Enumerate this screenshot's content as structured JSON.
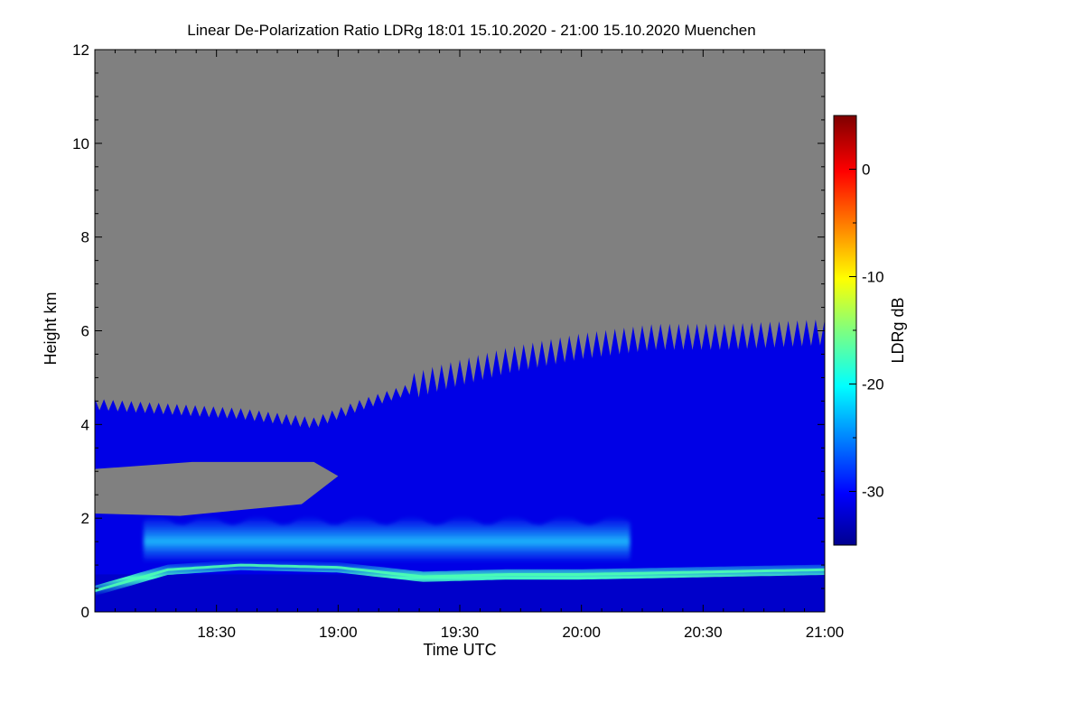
{
  "chart_data": {
    "type": "heatmap",
    "title": "Linear De-Polarization Ratio LDRg   18:01 15.10.2020 - 21:00 15.10.2020 Muenchen",
    "xlabel": "Time UTC",
    "ylabel": "Height km",
    "colorbar_label": "LDRg dB",
    "x_range_hours": [
      18.0,
      21.0
    ],
    "x_ticks": [
      {
        "label": "18:30",
        "value": 18.5
      },
      {
        "label": "19:00",
        "value": 19.0
      },
      {
        "label": "19:30",
        "value": 19.5
      },
      {
        "label": "20:00",
        "value": 20.0
      },
      {
        "label": "20:30",
        "value": 20.5
      },
      {
        "label": "21:00",
        "value": 21.0
      }
    ],
    "ylim": [
      0,
      12
    ],
    "y_ticks": [
      0,
      2,
      4,
      6,
      8,
      10,
      12
    ],
    "colorbar_range": [
      -35,
      5
    ],
    "colorbar_ticks": [
      0,
      -10,
      -20,
      -30
    ],
    "colormap": "jet",
    "background_no_signal_color": "#808080",
    "cloud_top_km": [
      {
        "time": 18.0,
        "top": 4.4
      },
      {
        "time": 18.3,
        "top": 4.3
      },
      {
        "time": 18.6,
        "top": 4.2
      },
      {
        "time": 18.9,
        "top": 4.0
      },
      {
        "time": 19.1,
        "top": 4.4
      },
      {
        "time": 19.4,
        "top": 4.9
      },
      {
        "time": 19.7,
        "top": 5.3
      },
      {
        "time": 20.0,
        "top": 5.6
      },
      {
        "time": 20.3,
        "top": 5.8
      },
      {
        "time": 20.6,
        "top": 5.8
      },
      {
        "time": 21.0,
        "top": 5.9
      }
    ],
    "high_ldr_band_km": [
      {
        "time": 18.0,
        "height": 0.45
      },
      {
        "time": 18.3,
        "height": 0.9
      },
      {
        "time": 18.6,
        "height": 1.0
      },
      {
        "time": 19.0,
        "height": 0.95
      },
      {
        "time": 19.35,
        "height": 0.75
      },
      {
        "time": 19.7,
        "height": 0.8
      },
      {
        "time": 20.0,
        "height": 0.8
      },
      {
        "time": 20.5,
        "height": 0.85
      },
      {
        "time": 21.0,
        "height": 0.9
      }
    ],
    "mid_layer_ldr_db_peak": -22,
    "band_ldr_db_peak": -17,
    "cloud_ldr_db": -31
  }
}
